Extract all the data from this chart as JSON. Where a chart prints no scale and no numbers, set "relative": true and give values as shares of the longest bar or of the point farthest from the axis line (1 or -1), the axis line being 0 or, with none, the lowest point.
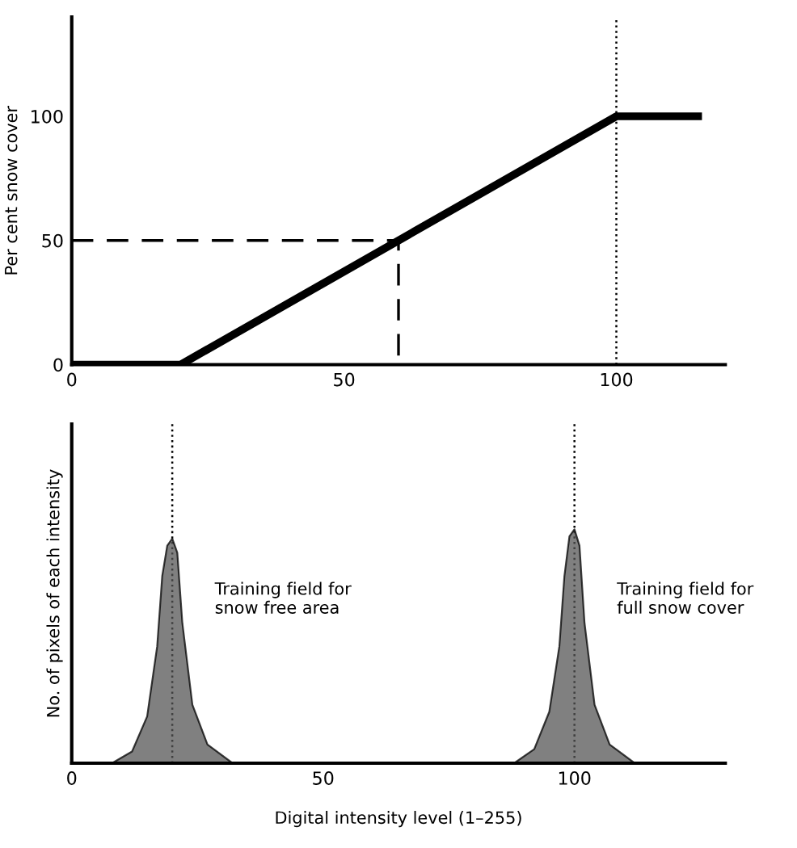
{
  "chart_data": [
    {
      "type": "line",
      "ylabel": "Per cent snow cover",
      "xlim": [
        0,
        120
      ],
      "ylim": [
        0,
        140
      ],
      "xticks": [
        0,
        50,
        100
      ],
      "yticks": [
        0,
        50,
        100
      ],
      "grid": false,
      "marker": "none",
      "series": [
        {
          "color": "#000000",
          "x": [
            0,
            20,
            100,
            115
          ],
          "values": [
            0,
            0,
            100,
            100
          ],
          "line_style": "solid"
        },
        {
          "color": "#000000",
          "x": [
            0,
            60,
            60
          ],
          "values": [
            50,
            50,
            0
          ],
          "line_style": "dashed"
        }
      ],
      "ref_lines": [
        {
          "axis": "x",
          "value": 100,
          "line_style": "dotted",
          "color": "#000000"
        }
      ]
    },
    {
      "type": "area",
      "relative": true,
      "xlabel": "Digital intensity level (1–255)",
      "ylabel": "No. of pixels of each intensity",
      "xlim": [
        0,
        130
      ],
      "xticks": [
        0,
        50,
        100
      ],
      "grid": false,
      "series": [
        {
          "color": "#555555",
          "x": [
            8,
            12,
            15,
            17,
            18,
            19,
            20,
            21,
            22,
            24,
            27,
            32,
            88,
            92,
            95,
            97,
            98,
            99,
            100,
            101,
            102,
            104,
            107,
            112
          ],
          "values": [
            0,
            0.05,
            0.2,
            0.5,
            0.8,
            0.93,
            0.96,
            0.9,
            0.6,
            0.25,
            0.08,
            0,
            0,
            0.06,
            0.22,
            0.5,
            0.8,
            0.97,
            1,
            0.93,
            0.6,
            0.25,
            0.08,
            0
          ]
        }
      ],
      "ref_lines": [
        {
          "axis": "x",
          "value": 20,
          "line_style": "dotted",
          "color": "#000000"
        },
        {
          "axis": "x",
          "value": 100,
          "line_style": "dotted",
          "color": "#000000"
        }
      ],
      "annotations": [
        "Training field for\nsnow free area",
        "Training field for\nfull snow cover"
      ]
    }
  ]
}
